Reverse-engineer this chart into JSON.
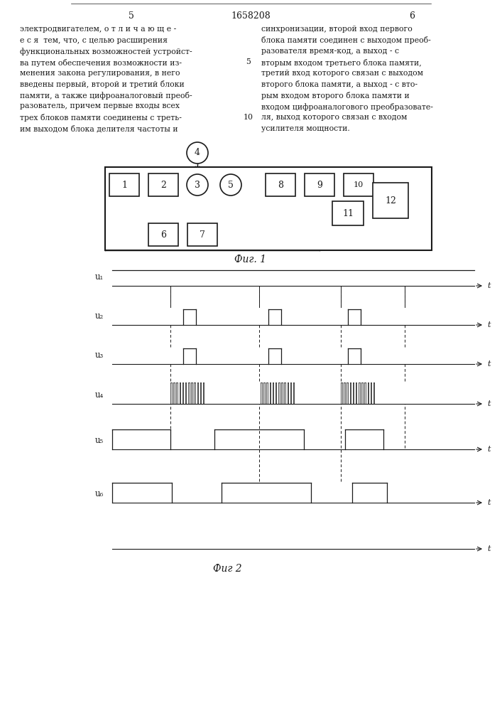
{
  "patent_number": "1658208",
  "page_left": "5",
  "page_right": "6",
  "text_left": [
    "электродвигателем, о т л и ч а ю щ е -",
    "е с я  тем, что, с целью расширения",
    "функциональных возможностей устройст-",
    "ва путем обеспечения возможности из-",
    "менения закона регулирования, в него",
    "введены первый, второй и третий блоки",
    "памяти, а также цифроаналоговый преоб-",
    "разователь, причем первые входы всех",
    "трех блоков памяти соединены с треть-",
    "им выходом блока делителя частоты и"
  ],
  "line_numbers": [
    [
      4,
      "5"
    ],
    [
      9,
      "10"
    ]
  ],
  "text_right": [
    "синхронизации, второй вход первого",
    "блока памяти соединен с выходом преоб-",
    "разователя время-код, а выход - с",
    "вторым входом третьего блока памяти,",
    "третий вход которого связан с выходом",
    "второго блока памяти, а выход - с вто-",
    "рым входом второго блока памяти и",
    "входом цифроаналогового преобразовате-",
    "ля, выход которого связан с входом",
    "усилителя мощности."
  ],
  "fig1_label": "Фиг. 1",
  "fig2_label": "Фиг 2",
  "background_color": "#ffffff",
  "line_color": "#1a1a1a",
  "text_color": "#1a1a1a"
}
